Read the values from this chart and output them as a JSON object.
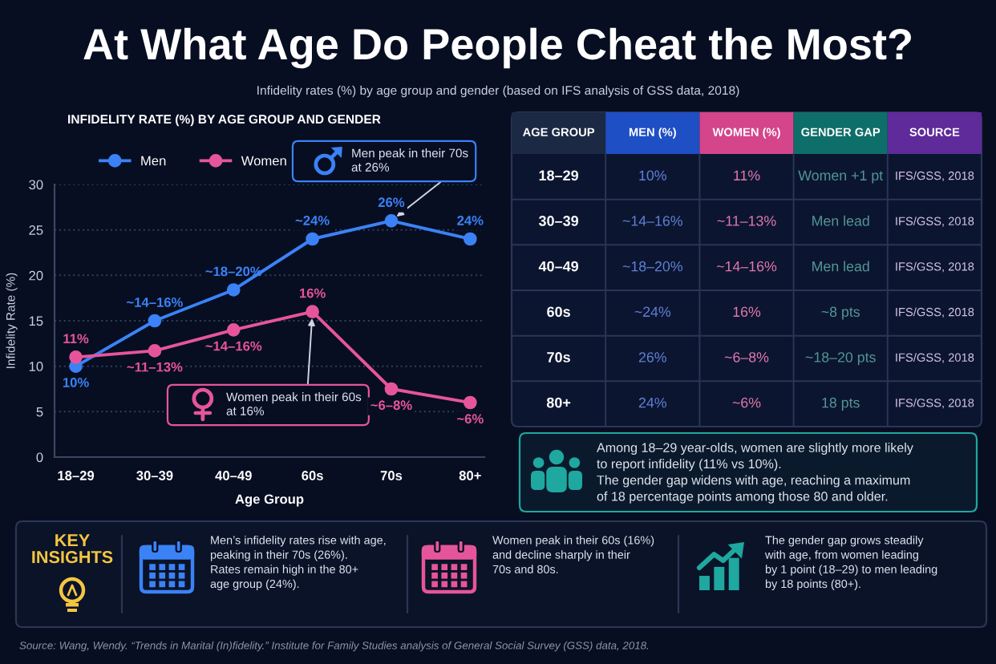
{
  "chart_data": [
    {
      "type": "other",
      "title": "At What Age Do People Cheat the Most?",
      "subtitle": "Infidelity rates (%) by age group and gender (based on IFS analysis of GSS data, 2018)",
      "annotations": [
        "Source: Wang, Wendy. “Trends in Marital (In)fidelity.” Institute for Family Studies analysis of General Social Survey (GSS) data, 2018."
      ]
    },
    {
      "type": "line",
      "title": "INFIDELITY RATE (%) BY AGE GROUP AND GENDER",
      "xlabel": "Age Group",
      "ylabel": "Infidelity Rate (%)",
      "categories": [
        "18–29",
        "30–39",
        "40–49",
        "60s",
        "70s",
        "80+"
      ],
      "series": [
        {
          "name": "Men",
          "color": "#3b82f6",
          "values": [
            10,
            15,
            18.4,
            24,
            26,
            24
          ],
          "value_labels": [
            "10%",
            null,
            "~18–20%",
            "~24%",
            "26%",
            "24%"
          ]
        },
        {
          "name": "Women",
          "color": "#e6559b",
          "values": [
            11,
            11.7,
            14,
            16,
            7.5,
            6
          ],
          "value_labels": [
            "11%",
            null,
            "~14–16%",
            "16%",
            null,
            "~6%"
          ]
        }
      ],
      "ylim": [
        0,
        30
      ],
      "yticks": [
        0,
        5,
        10,
        15,
        20,
        25,
        30
      ],
      "grid": "y",
      "legend": "top left",
      "marker": "circle",
      "line_style": "solid",
      "annotations": [
        {
          "text": "Men peak in their 70s\nat 26%",
          "x": "70s",
          "y": 26
        },
        {
          "text": "Women peak in their 60s\nat 16%",
          "x": "60s",
          "y": 16
        },
        {
          "text": "~14–16%",
          "x": "30–39",
          "y": 15
        },
        {
          "text": "~11–13%",
          "x": "30–39",
          "y": 11.7
        },
        {
          "text": "~6–8%",
          "x": "70s",
          "y": 7.5
        }
      ]
    },
    {
      "type": "other",
      "categories": [
        "AGE GROUP",
        "MEN (%)",
        "WOMEN (%)",
        "GENDER GAP",
        "SOURCE"
      ],
      "colors": [
        "#1b2944",
        "#1f4fc4",
        "#d4458c",
        "#0e6e69",
        "#5f2a9a"
      ],
      "y_categories": [
        "18–29",
        "30–39",
        "40–49",
        "60s",
        "70s",
        "80+"
      ],
      "cell_labels": [
        [
          "10%",
          "11%",
          "Women +1 pt",
          "IFS/GSS, 2018"
        ],
        [
          "~14–16%",
          "~11–13%",
          "Men lead",
          "IFS/GSS, 2018"
        ],
        [
          "~18–20%",
          "~14–16%",
          "Men lead",
          "IFS/GSS, 2018"
        ],
        [
          "~24%",
          "16%",
          "~8 pts",
          "IFS/GSS, 2018"
        ],
        [
          "26%",
          "~6–8%",
          "~18–20 pts",
          "IFS/GSS, 2018"
        ],
        [
          "24%",
          "~6%",
          "18 pts",
          "IFS/GSS, 2018"
        ]
      ]
    },
    {
      "type": "other",
      "color": "#1fa89f",
      "annotations": [
        "Among 18–29 year-olds, women are slightly more likely\nto report infidelity (11% vs 10%).\nThe gender gap widens with age, reaching a maximum\nof 18 percentage points among those 80 and older."
      ]
    },
    {
      "type": "other",
      "title": "KEY\nINSIGHTS",
      "color": "#f5c542",
      "colors": [
        "#3b82f6",
        "#e6559b",
        "#1fa89f"
      ],
      "annotations": [
        "Men’s infidelity rates rise with age,\npeaking in their 70s (26%).\nRates remain high in the 80+\nage group (24%).",
        "Women peak in their 60s (16%)\nand decline sharply in their\n70s and 80s.",
        "The gender gap grows steadily\nwith age, from women leading\nby 1 point (18–29) to men leading\nby 18 points (80+)."
      ]
    }
  ]
}
